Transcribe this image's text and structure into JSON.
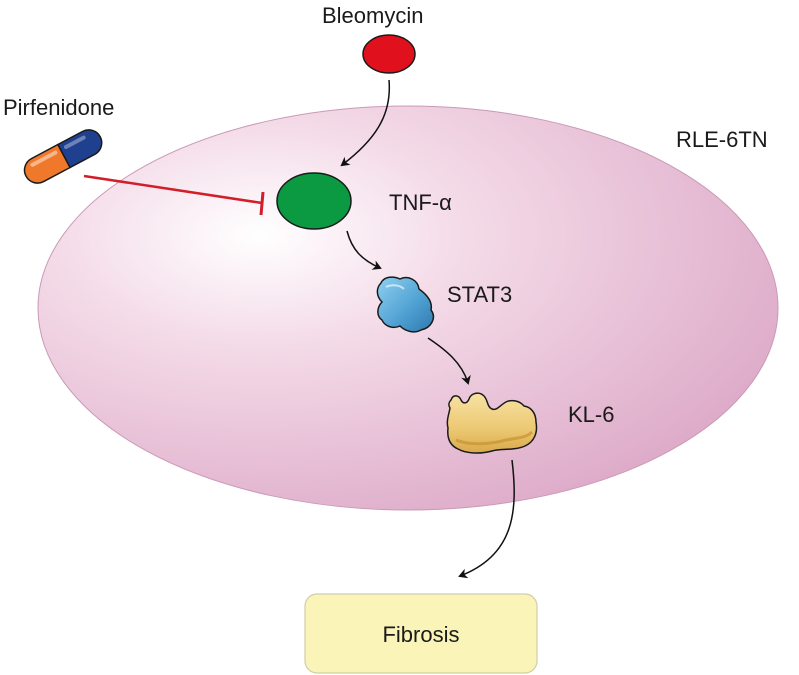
{
  "labels": {
    "bleomycin": "Bleomycin",
    "pirfenidone": "Pirfenidone",
    "cell_line": "RLE-6TN",
    "tnf": "TNF-α",
    "stat3": "STAT3",
    "kl6": "KL-6",
    "outcome": "Fibrosis"
  },
  "colors": {
    "cell_edge": "#d9a4c3",
    "cell_center": "#ffffff",
    "bleomycin": "#e0101d",
    "tnf": "#0b9a41",
    "stat3": "#5aa9d6",
    "kl6": "#ecc873",
    "inhibit_line": "#d21d2a",
    "capsule_orange": "#f0782a",
    "capsule_blue": "#1f3f8f",
    "outcome_box": "#fbf4b8"
  },
  "icons": [
    "bleomycin-dot-icon",
    "pill-capsule-icon",
    "tnf-alpha-icon",
    "stat3-protein-icon",
    "kl6-protein-icon"
  ]
}
